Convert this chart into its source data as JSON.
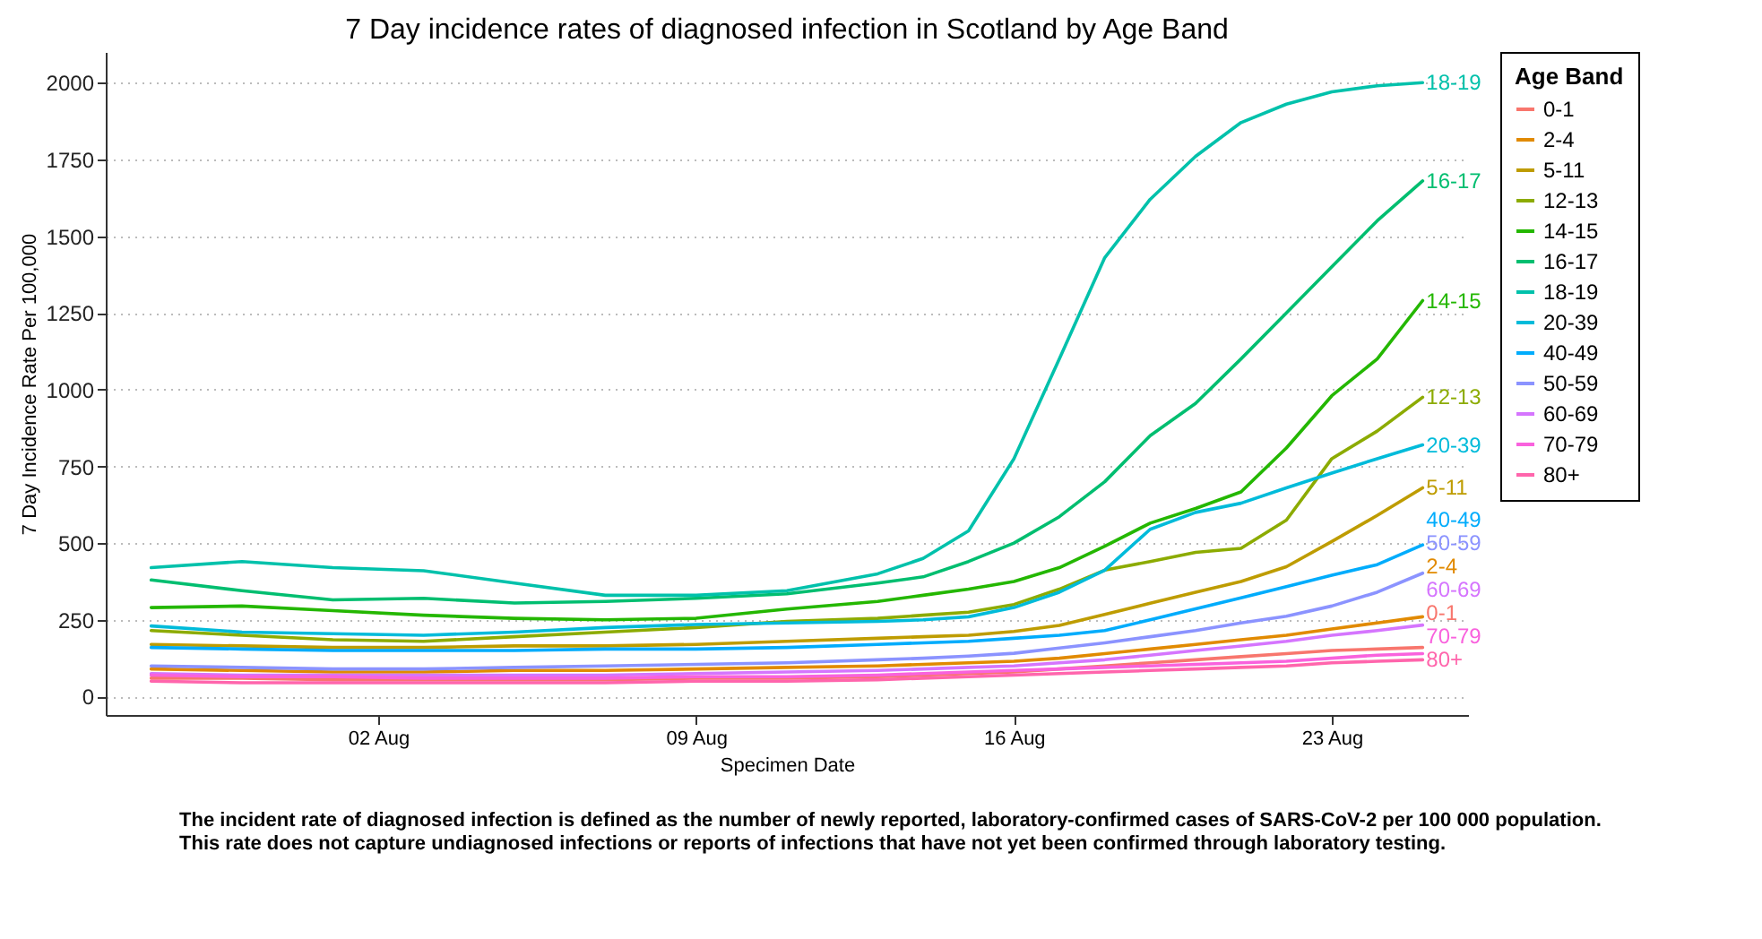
{
  "chart_data": {
    "type": "line",
    "title": "7 Day incidence rates of diagnosed infection in Scotland by Age Band",
    "xlabel": "Specimen Date",
    "ylabel": "7 Day Incidence Rate Per 100,000",
    "legend_title": "Age Band",
    "x": [
      "--07-28",
      "--07-30",
      "--08-01",
      "--08-03",
      "--08-05",
      "--08-07",
      "--08-09",
      "--08-11",
      "--08-13",
      "--08-14",
      "--08-15",
      "--08-16",
      "--08-17",
      "--08-18",
      "--08-19",
      "--08-20",
      "--08-21",
      "--08-22",
      "--08-23",
      "--08-24",
      "--08-25"
    ],
    "series": [
      {
        "name": "0-1",
        "color": "#f8766d",
        "values": [
          60,
          60,
          55,
          55,
          55,
          55,
          60,
          60,
          65,
          70,
          75,
          80,
          90,
          100,
          110,
          120,
          130,
          140,
          150,
          155,
          160
        ]
      },
      {
        "name": "2-4",
        "color": "#e18a00",
        "values": [
          90,
          85,
          80,
          80,
          85,
          85,
          90,
          95,
          100,
          105,
          110,
          115,
          125,
          140,
          155,
          170,
          185,
          200,
          220,
          240,
          260
        ]
      },
      {
        "name": "5-11",
        "color": "#be9c00",
        "values": [
          170,
          165,
          160,
          160,
          165,
          165,
          170,
          180,
          190,
          195,
          200,
          212,
          232,
          268,
          304,
          340,
          375,
          423,
          505,
          590,
          680
        ]
      },
      {
        "name": "12-13",
        "color": "#8cab00",
        "values": [
          215,
          200,
          185,
          180,
          195,
          210,
          225,
          245,
          255,
          265,
          275,
          300,
          350,
          412,
          440,
          470,
          483,
          575,
          775,
          865,
          975
        ]
      },
      {
        "name": "14-15",
        "color": "#24b700",
        "values": [
          290,
          295,
          280,
          265,
          255,
          250,
          255,
          285,
          310,
          330,
          350,
          375,
          420,
          490,
          565,
          613,
          667,
          810,
          980,
          1100,
          1290
        ]
      },
      {
        "name": "16-17",
        "color": "#00be70",
        "values": [
          380,
          345,
          315,
          320,
          305,
          310,
          320,
          335,
          370,
          390,
          440,
          500,
          586,
          700,
          850,
          955,
          1100,
          1250,
          1400,
          1550,
          1680
        ]
      },
      {
        "name": "18-19",
        "color": "#00c1ab",
        "values": [
          420,
          440,
          420,
          410,
          370,
          330,
          330,
          345,
          400,
          450,
          540,
          775,
          1100,
          1430,
          1620,
          1760,
          1870,
          1930,
          1970,
          1990,
          2000
        ]
      },
      {
        "name": "20-39",
        "color": "#00bbda",
        "values": [
          230,
          210,
          205,
          200,
          210,
          225,
          235,
          240,
          245,
          250,
          260,
          290,
          340,
          412,
          545,
          600,
          630,
          680,
          728,
          775,
          820
        ]
      },
      {
        "name": "40-49",
        "color": "#00acfc",
        "values": [
          160,
          155,
          150,
          150,
          150,
          155,
          155,
          160,
          170,
          175,
          180,
          190,
          200,
          215,
          250,
          286,
          322,
          358,
          395,
          430,
          494
        ]
      },
      {
        "name": "50-59",
        "color": "#8b93ff",
        "values": [
          100,
          95,
          90,
          90,
          95,
          100,
          105,
          110,
          120,
          125,
          132,
          141,
          158,
          175,
          195,
          215,
          240,
          262,
          295,
          340,
          402
        ]
      },
      {
        "name": "60-69",
        "color": "#d575fe",
        "values": [
          75,
          70,
          70,
          70,
          70,
          70,
          75,
          80,
          85,
          90,
          95,
          100,
          110,
          120,
          135,
          150,
          165,
          180,
          200,
          215,
          233
        ]
      },
      {
        "name": "70-79",
        "color": "#f962dd",
        "values": [
          70,
          65,
          65,
          60,
          60,
          60,
          65,
          65,
          70,
          75,
          80,
          85,
          90,
          95,
          100,
          105,
          110,
          115,
          125,
          135,
          140
        ]
      },
      {
        "name": "80+",
        "color": "#ff65ac",
        "values": [
          50,
          45,
          45,
          45,
          45,
          45,
          50,
          50,
          55,
          60,
          65,
          70,
          75,
          80,
          85,
          90,
          95,
          100,
          110,
          115,
          120
        ]
      }
    ],
    "xlim": [
      "--07-27",
      "--08-26"
    ],
    "xticks": [
      {
        "value": "--08-02",
        "label": "02 Aug"
      },
      {
        "value": "--08-09",
        "label": "09 Aug"
      },
      {
        "value": "--08-16",
        "label": "16 Aug"
      },
      {
        "value": "--08-23",
        "label": "23 Aug"
      }
    ],
    "ylim": [
      -60,
      2100
    ],
    "yticks": [
      0,
      250,
      500,
      750,
      1000,
      1250,
      1500,
      1750,
      2000
    ],
    "grid": "y",
    "legend": "right",
    "marker": "none",
    "line_style": "solid",
    "annotations": [
      "The incident rate of diagnosed infection is defined as the number of newly reported, laboratory-confirmed cases of SARS-CoV-2 per 100 000 population.",
      "This rate does not capture undiagnosed infections or reports of infections that have not yet been confirmed through laboratory testing."
    ]
  }
}
